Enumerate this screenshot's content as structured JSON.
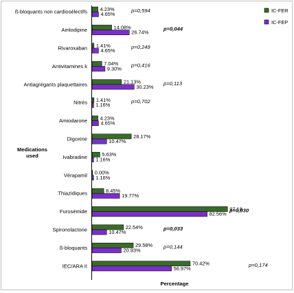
{
  "chart_data": {
    "type": "bar",
    "orientation": "horizontal",
    "categories": [
      "ß-bloquants non cardiosélectifs",
      "Amlodipine",
      "Rivaroxaban",
      "Antivitamines k",
      "Antiagrégants plaquettaires",
      "Nitrés",
      "Amiodarone",
      "Digoxine",
      "Ivabradine",
      "Vérapamil",
      "Thiazidiques",
      "Furosémide",
      "Spironolactone",
      "ß-bloquants",
      "IEC/ARA II"
    ],
    "series": [
      {
        "name": "IC-FER",
        "color": "#3a6b2a",
        "values": [
          4.23,
          14.08,
          1.41,
          7.04,
          21.13,
          1.41,
          4.23,
          28.17,
          5.63,
          0.0,
          8.45,
          97.18,
          22.54,
          29.58,
          70.42
        ],
        "labels": [
          "4.23%",
          "14.08%",
          "1.41%",
          "7.04%",
          "21.13%",
          "1.41%",
          "4.23%",
          "28.17%",
          "5.63%",
          "0.00%",
          "8.45%",
          "97.18",
          "22.54%",
          "29.58%",
          "70.42%"
        ]
      },
      {
        "name": "IC-FEP",
        "color": "#7a2fc9",
        "values": [
          4.65,
          26.74,
          4.65,
          9.3,
          30.23,
          1.16,
          4.65,
          10.47,
          1.16,
          1.16,
          19.77,
          82.56,
          10.47,
          20.93,
          56.97
        ],
        "labels": [
          "4.65%",
          "26.74%",
          "4.65%",
          "9.30%",
          "30.23%",
          "1.16%",
          "4.65%",
          "10.47%",
          "1.16%",
          "1.16%",
          "19.77%",
          "82.56%",
          "10.47%",
          "20.93%",
          "56.97%"
        ]
      }
    ],
    "p_values": [
      "p=0,594",
      "p=0,044",
      "p=0,249",
      "p=0,416",
      "p=0,113",
      "p=0,702",
      "",
      "",
      "",
      "",
      "",
      "p=0,030",
      "p=0,033",
      "p=0,144",
      "p=0,174"
    ],
    "p_bold": [
      false,
      true,
      false,
      false,
      false,
      false,
      false,
      false,
      false,
      false,
      false,
      true,
      true,
      false,
      false
    ],
    "xlim": [
      0,
      100
    ],
    "xlabel": "Percentage",
    "ylabel_line1": "Medications",
    "ylabel_line2": "used",
    "grid": false,
    "legend": "top-right"
  }
}
